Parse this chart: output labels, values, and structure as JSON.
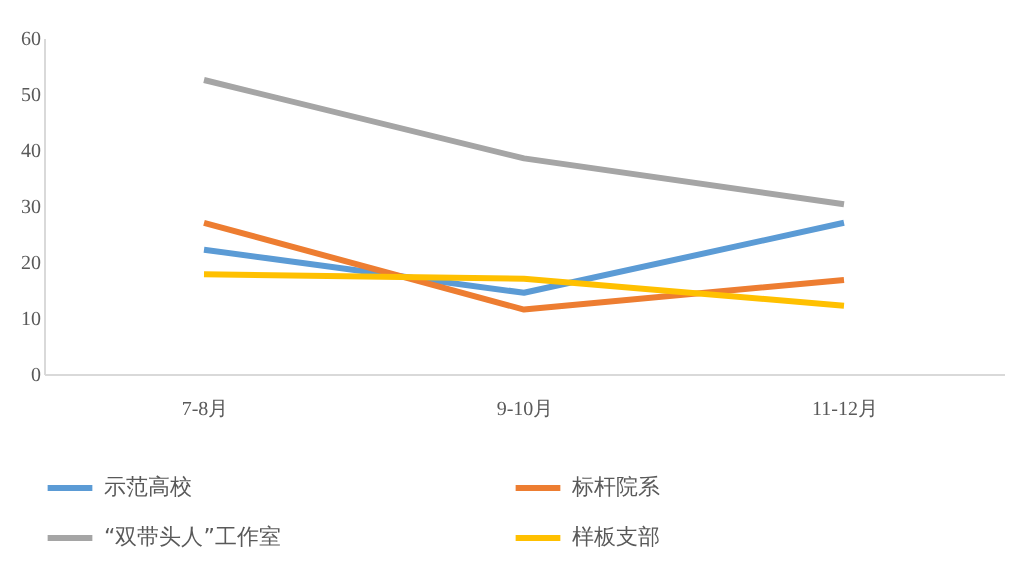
{
  "chart_data": {
    "type": "line",
    "categories": [
      "7-8月",
      "9-10月",
      "11-12月"
    ],
    "series": [
      {
        "name": "示范高校",
        "color": "#5b9bd5",
        "values": [
          22.2,
          14.5,
          27.0
        ]
      },
      {
        "name": "标杆院系",
        "color": "#ed7d31",
        "values": [
          27.0,
          11.5,
          16.8
        ]
      },
      {
        "name": "“双带头人”工作室",
        "color": "#a5a5a5",
        "values": [
          52.5,
          38.5,
          30.3
        ]
      },
      {
        "name": "样板支部",
        "color": "#ffc000",
        "values": [
          17.8,
          17.0,
          12.2
        ]
      }
    ],
    "ylim": [
      0,
      60
    ],
    "yticks": [
      0,
      10,
      20,
      30,
      40,
      50,
      60
    ],
    "grid": false,
    "legend": "bottom"
  }
}
